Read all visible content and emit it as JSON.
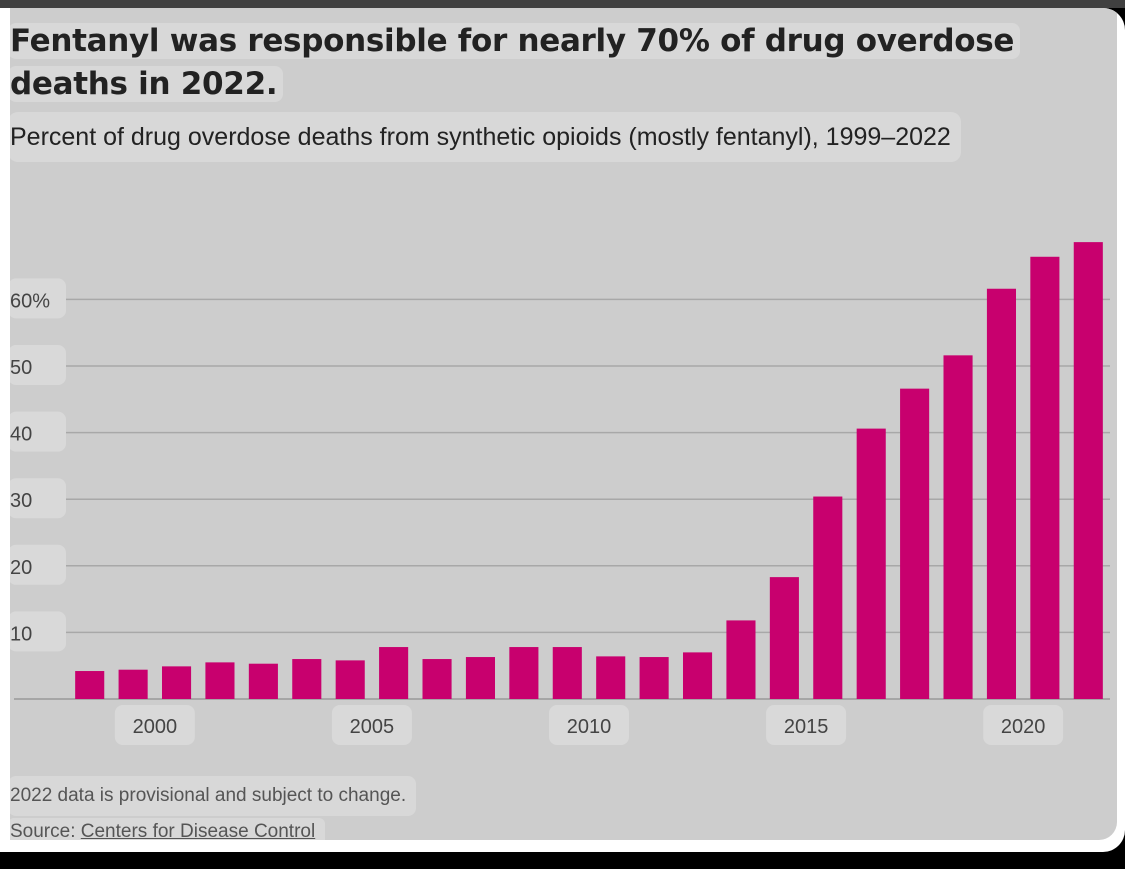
{
  "title": "Fentanyl was responsible for nearly 70% of drug overdose deaths in 2022.",
  "subtitle": "Percent of drug overdose deaths from synthetic opioids (mostly fentanyl), 1999–2022",
  "note": "2022 data is provisional and subject to change.",
  "source_prefix": "Source: ",
  "source_link": "Centers for Disease Control",
  "colors": {
    "bar": "#c8006e",
    "grid": "#a8a8a8",
    "axis_text": "#444444",
    "label_bg": "#d9d9d9"
  },
  "chart_data": {
    "type": "bar",
    "title": "Fentanyl was responsible for nearly 70% of drug overdose deaths in 2022.",
    "subtitle": "Percent of drug overdose deaths from synthetic opioids (mostly fentanyl), 1999–2022",
    "xlabel": "",
    "ylabel": "",
    "categories": [
      1999,
      2000,
      2001,
      2002,
      2003,
      2004,
      2005,
      2006,
      2007,
      2008,
      2009,
      2010,
      2011,
      2012,
      2013,
      2014,
      2015,
      2016,
      2017,
      2018,
      2019,
      2020,
      2021,
      2022
    ],
    "values": [
      4.2,
      4.4,
      4.9,
      5.5,
      5.3,
      6.0,
      5.8,
      7.8,
      6.0,
      6.3,
      7.8,
      7.8,
      6.4,
      6.3,
      7.0,
      11.8,
      18.3,
      30.4,
      40.6,
      46.6,
      51.6,
      61.6,
      66.4,
      68.6
    ],
    "ylim": [
      0,
      70
    ],
    "yticks": [
      10,
      20,
      30,
      40,
      50,
      60
    ],
    "ytick_labels": [
      "10",
      "20",
      "30",
      "40",
      "50",
      "60%"
    ],
    "xticks": [
      2000,
      2005,
      2010,
      2015,
      2020
    ],
    "xtick_labels": [
      "2000",
      "2005",
      "2010",
      "2015",
      "2020"
    ],
    "grid": true,
    "legend": "none"
  }
}
